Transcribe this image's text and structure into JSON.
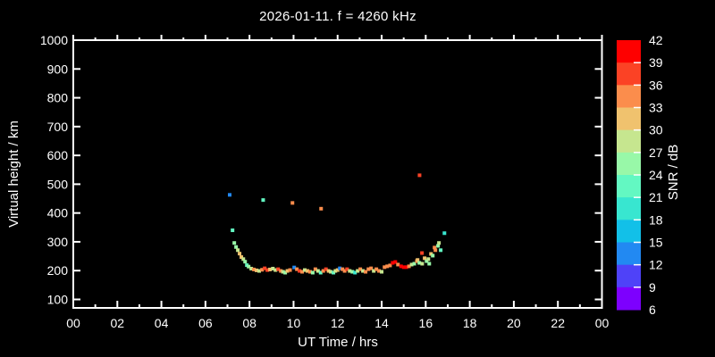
{
  "chart_data": {
    "type": "scatter",
    "title": "2026-01-11. f = 4260 kHz",
    "xlabel": "UT Time / hrs",
    "ylabel": "Virtual height / km",
    "background": "#000000",
    "foreground": "#ffffff",
    "x_axis": {
      "min": 0,
      "max": 24,
      "major_tick_hours": 2,
      "minor_tick_hours": 1,
      "tick_labels": [
        "00",
        "02",
        "04",
        "06",
        "08",
        "10",
        "12",
        "14",
        "16",
        "18",
        "20",
        "22",
        "00"
      ]
    },
    "y_axis": {
      "min": 100,
      "max": 1000,
      "tick_step": 100,
      "tick_labels": [
        "100",
        "200",
        "300",
        "400",
        "500",
        "600",
        "700",
        "800",
        "900",
        "1000"
      ]
    },
    "colorbar": {
      "label": "SNR / dB",
      "min": 6,
      "max": 42,
      "step": 3,
      "tick_labels": [
        "42",
        "39",
        "36",
        "33",
        "30",
        "27",
        "24",
        "21",
        "18",
        "15",
        "12",
        "9",
        "6"
      ],
      "colors_bottom_to_top": [
        "#7d00fe",
        "#4f42f8",
        "#2289f2",
        "#12c0e8",
        "#38e6d0",
        "#63f8c2",
        "#98f8a8",
        "#c6e68f",
        "#f0c26e",
        "#fb8d4c",
        "#fb4225",
        "#fe0000"
      ]
    },
    "points_format": [
      "ut_hours",
      "virtual_height_km",
      "snr_db"
    ],
    "points": [
      [
        7.1,
        463,
        14
      ],
      [
        7.23,
        340,
        22
      ],
      [
        8.62,
        445,
        22
      ],
      [
        9.95,
        435,
        34
      ],
      [
        11.25,
        415,
        33
      ],
      [
        15.72,
        531,
        37
      ],
      [
        16.85,
        330,
        19
      ],
      [
        7.31,
        296,
        25
      ],
      [
        7.39,
        282,
        26
      ],
      [
        7.47,
        271,
        29
      ],
      [
        7.55,
        259,
        31
      ],
      [
        7.63,
        247,
        30
      ],
      [
        7.72,
        240,
        28
      ],
      [
        7.8,
        231,
        26
      ],
      [
        7.88,
        219,
        21
      ],
      [
        7.96,
        214,
        25
      ],
      [
        8.08,
        207,
        29
      ],
      [
        8.2,
        204,
        34
      ],
      [
        8.32,
        201,
        31
      ],
      [
        8.44,
        199,
        29
      ],
      [
        8.57,
        203,
        35
      ],
      [
        8.69,
        208,
        38
      ],
      [
        8.81,
        202,
        36
      ],
      [
        8.93,
        204,
        31
      ],
      [
        9.06,
        207,
        29
      ],
      [
        9.18,
        202,
        27
      ],
      [
        9.3,
        205,
        38
      ],
      [
        9.42,
        199,
        34
      ],
      [
        9.52,
        196,
        29
      ],
      [
        9.62,
        193,
        25
      ],
      [
        9.72,
        199,
        30
      ],
      [
        9.84,
        202,
        33
      ],
      [
        10.03,
        211,
        13
      ],
      [
        10.15,
        205,
        34
      ],
      [
        10.27,
        199,
        38
      ],
      [
        10.39,
        196,
        33
      ],
      [
        10.51,
        202,
        29
      ],
      [
        10.63,
        199,
        30
      ],
      [
        10.75,
        196,
        33
      ],
      [
        10.87,
        193,
        26
      ],
      [
        10.99,
        205,
        33
      ],
      [
        11.11,
        199,
        29
      ],
      [
        11.23,
        193,
        21
      ],
      [
        11.35,
        199,
        34
      ],
      [
        11.47,
        205,
        37
      ],
      [
        11.59,
        199,
        30
      ],
      [
        11.69,
        196,
        29
      ],
      [
        11.81,
        193,
        21
      ],
      [
        11.9,
        199,
        29
      ],
      [
        12.0,
        202,
        30
      ],
      [
        12.1,
        208,
        13
      ],
      [
        12.22,
        205,
        34
      ],
      [
        12.32,
        199,
        33
      ],
      [
        12.43,
        205,
        37
      ],
      [
        12.55,
        199,
        29
      ],
      [
        12.67,
        196,
        25
      ],
      [
        12.79,
        193,
        20
      ],
      [
        12.91,
        199,
        29
      ],
      [
        13.03,
        205,
        34
      ],
      [
        13.15,
        199,
        29
      ],
      [
        13.27,
        196,
        33
      ],
      [
        13.4,
        205,
        33
      ],
      [
        13.52,
        208,
        34
      ],
      [
        13.64,
        199,
        29
      ],
      [
        13.76,
        205,
        34
      ],
      [
        13.88,
        199,
        33
      ],
      [
        14.0,
        196,
        29
      ],
      [
        14.13,
        212,
        34
      ],
      [
        14.25,
        215,
        33
      ],
      [
        14.38,
        218,
        35
      ],
      [
        14.5,
        227,
        39
      ],
      [
        14.62,
        230,
        40
      ],
      [
        14.74,
        221,
        34
      ],
      [
        14.88,
        215,
        39
      ],
      [
        15.0,
        212,
        40
      ],
      [
        15.12,
        212,
        39
      ],
      [
        15.24,
        215,
        34
      ],
      [
        15.36,
        221,
        29
      ],
      [
        15.48,
        224,
        25
      ],
      [
        15.6,
        233,
        34
      ],
      [
        15.63,
        237,
        30
      ],
      [
        15.71,
        227,
        26
      ],
      [
        15.83,
        261,
        38
      ],
      [
        15.84,
        224,
        29
      ],
      [
        15.95,
        243,
        30
      ],
      [
        16.04,
        233,
        26
      ],
      [
        16.12,
        240,
        29
      ],
      [
        16.16,
        224,
        24
      ],
      [
        16.24,
        258,
        30
      ],
      [
        16.32,
        252,
        26
      ],
      [
        16.4,
        280,
        34
      ],
      [
        16.44,
        271,
        33
      ],
      [
        16.56,
        286,
        26
      ],
      [
        16.6,
        296,
        29
      ],
      [
        16.68,
        271,
        21
      ]
    ]
  }
}
